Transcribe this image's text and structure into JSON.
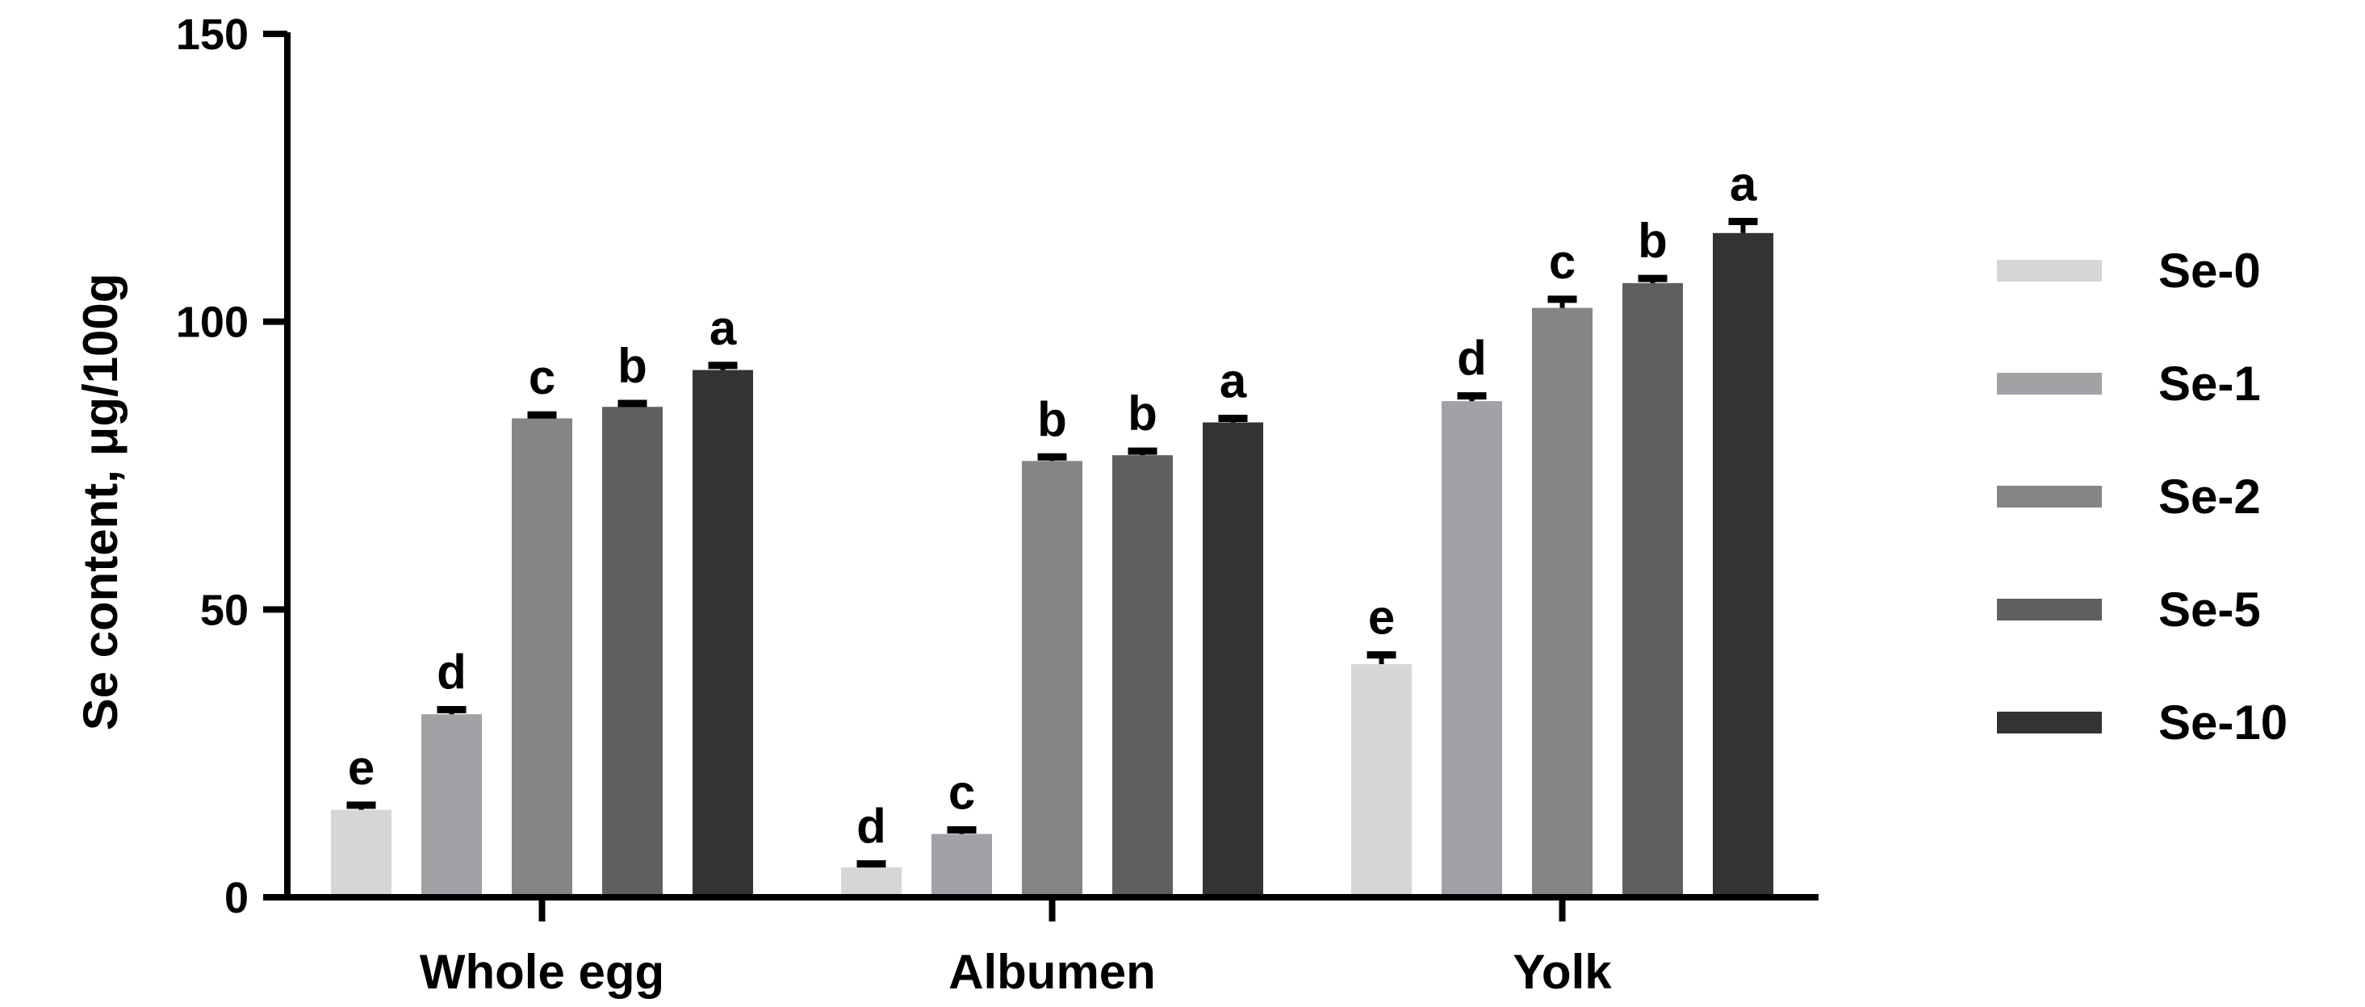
{
  "chart_data": {
    "type": "bar",
    "title": "",
    "xlabel": "",
    "ylabel": "Se content, μg/100g",
    "ylim": [
      0,
      150
    ],
    "yticks": [
      0,
      50,
      100,
      150
    ],
    "categories": [
      "Whole egg",
      "Albumen",
      "Yolk"
    ],
    "series": [
      {
        "name": "Se-0",
        "color": "#d6d6d6",
        "values": [
          15.2,
          5.2,
          40.5
        ],
        "errors": [
          0.8,
          0.6,
          1.6
        ],
        "letters": [
          "e",
          "d",
          "e"
        ]
      },
      {
        "name": "Se-1",
        "color": "#a2a2a6",
        "values": [
          31.8,
          11.0,
          86.2
        ],
        "errors": [
          0.8,
          0.7,
          0.9
        ],
        "letters": [
          "d",
          "c",
          "d"
        ]
      },
      {
        "name": "Se-2",
        "color": "#858585",
        "values": [
          83.2,
          75.8,
          102.4
        ],
        "errors": [
          0.6,
          0.7,
          1.5
        ],
        "letters": [
          "c",
          "b",
          "c"
        ]
      },
      {
        "name": "Se-5",
        "color": "#5f5f5f",
        "values": [
          85.2,
          76.8,
          106.7
        ],
        "errors": [
          0.6,
          0.7,
          0.8
        ],
        "letters": [
          "b",
          "b",
          "b"
        ]
      },
      {
        "name": "Se-10",
        "color": "#333333",
        "values": [
          91.6,
          82.5,
          115.4
        ],
        "errors": [
          0.8,
          0.7,
          2.0
        ],
        "letters": [
          "a",
          "a",
          "a"
        ]
      }
    ],
    "grid": false,
    "legend_position": "right"
  }
}
